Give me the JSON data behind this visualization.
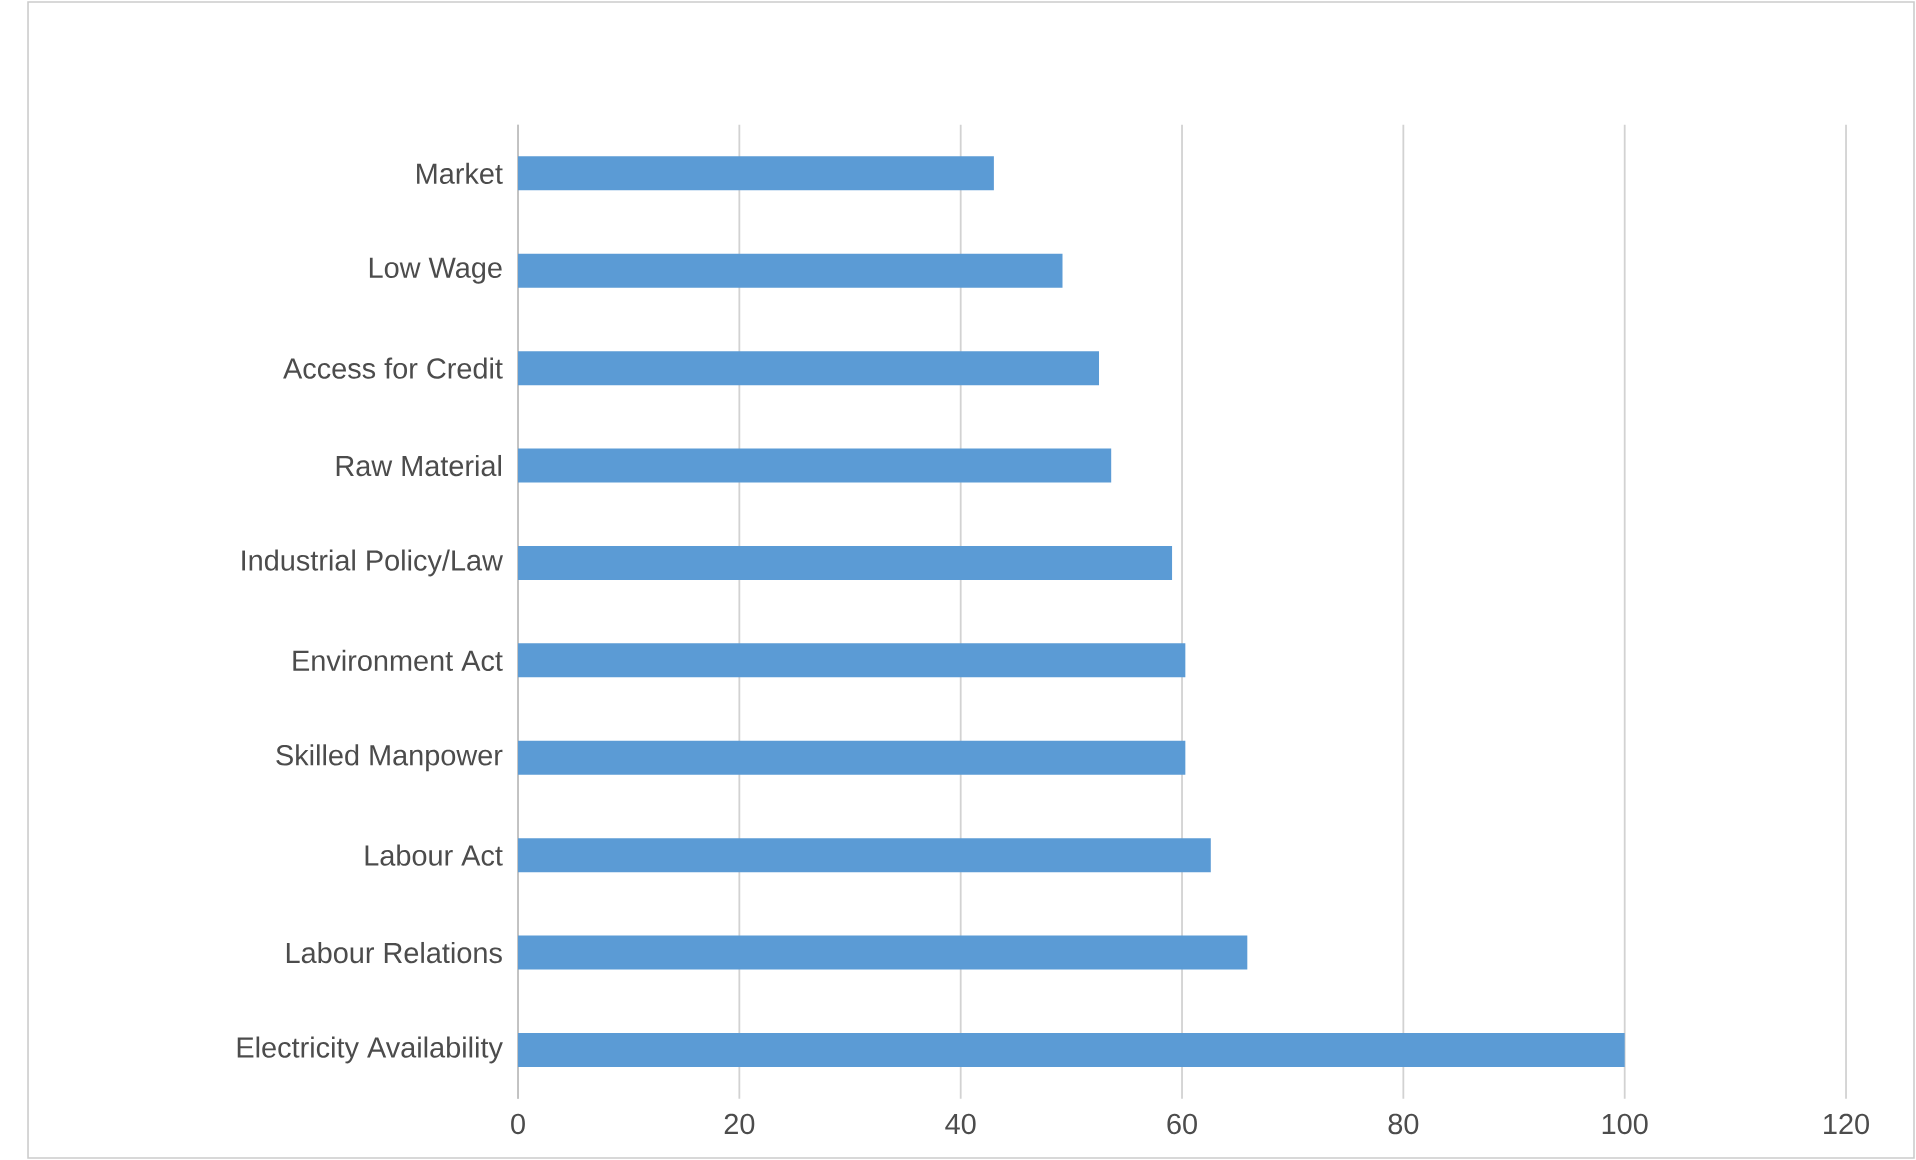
{
  "chart_data": {
    "type": "bar",
    "orientation": "horizontal",
    "categories": [
      "Market",
      "Low Wage",
      "Access for Credit",
      "Raw Material",
      "Industrial Policy/Law",
      "Environment Act",
      "Skilled Manpower",
      "Labour Act",
      "Labour Relations",
      "Electricity Availability"
    ],
    "values": [
      43.0,
      49.2,
      52.5,
      53.6,
      59.1,
      60.3,
      60.3,
      62.6,
      65.9,
      100
    ],
    "color": "#5b9bd5",
    "xlim": [
      0,
      120
    ],
    "xticks": [
      0,
      20,
      40,
      60,
      80,
      100,
      120
    ],
    "grid": "x"
  }
}
